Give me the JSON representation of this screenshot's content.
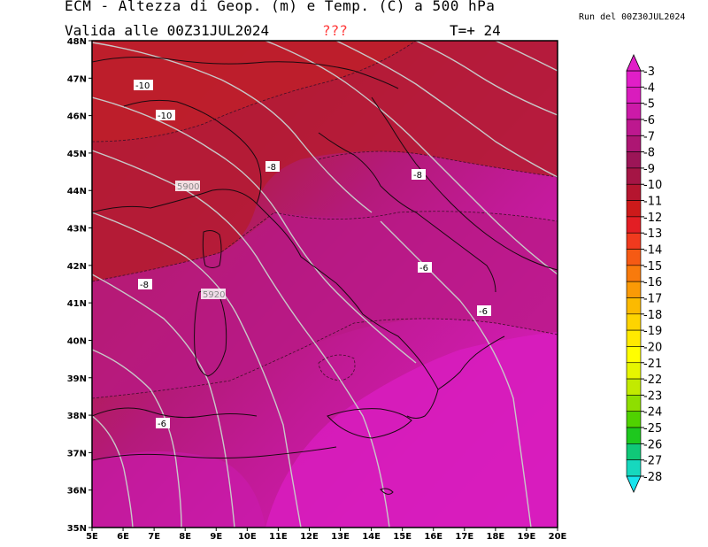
{
  "title": "ECM - Altezza di Geop. (m) e Temp. (C) a 500 hPa",
  "subtitle": "Valida alle 00Z31JUL2024",
  "flag": "???",
  "timestep": "T=+ 24",
  "run_info": "Run del 00Z30JUL2024",
  "lat_labels": [
    "48N",
    "47N",
    "46N",
    "45N",
    "44N",
    "43N",
    "42N",
    "41N",
    "40N",
    "39N",
    "38N",
    "37N",
    "36N",
    "35N"
  ],
  "lon_labels": [
    "5E",
    "6E",
    "7E",
    "8E",
    "9E",
    "10E",
    "11E",
    "12E",
    "13E",
    "14E",
    "15E",
    "16E",
    "17E",
    "18E",
    "19E",
    "20E"
  ],
  "colorbar": {
    "labels": [
      "-3",
      "-4",
      "-5",
      "-6",
      "-7",
      "-8",
      "-9",
      "-10",
      "-11",
      "-12",
      "-13",
      "-14",
      "-15",
      "-16",
      "-17",
      "-18",
      "-19",
      "-20",
      "-21",
      "-22",
      "-23",
      "-24",
      "-25",
      "-26",
      "-27",
      "-28"
    ],
    "colors": [
      "#e11ec8",
      "#d91cbd",
      "#cc1aa8",
      "#bd188f",
      "#ad1673",
      "#9c1557",
      "#a51545",
      "#b5152f",
      "#cd1a1a",
      "#e31e24",
      "#f03a1e",
      "#f55a14",
      "#f87a0c",
      "#fa9a06",
      "#fcba00",
      "#fed400",
      "#ffea00",
      "#fffe00",
      "#e6f500",
      "#c2ea00",
      "#8ede00",
      "#50d200",
      "#1ec81e",
      "#10c878",
      "#16d8be",
      "#18e4ee"
    ]
  },
  "map": {
    "temp_labels": [
      {
        "text": "-10"
      },
      {
        "text": "-10"
      },
      {
        "text": "-8"
      },
      {
        "text": "-8"
      },
      {
        "text": "-6"
      },
      {
        "text": "-8"
      },
      {
        "text": "-6"
      },
      {
        "text": "-6"
      }
    ],
    "geop_labels": [
      {
        "text": "5900"
      },
      {
        "text": "5920"
      }
    ]
  }
}
